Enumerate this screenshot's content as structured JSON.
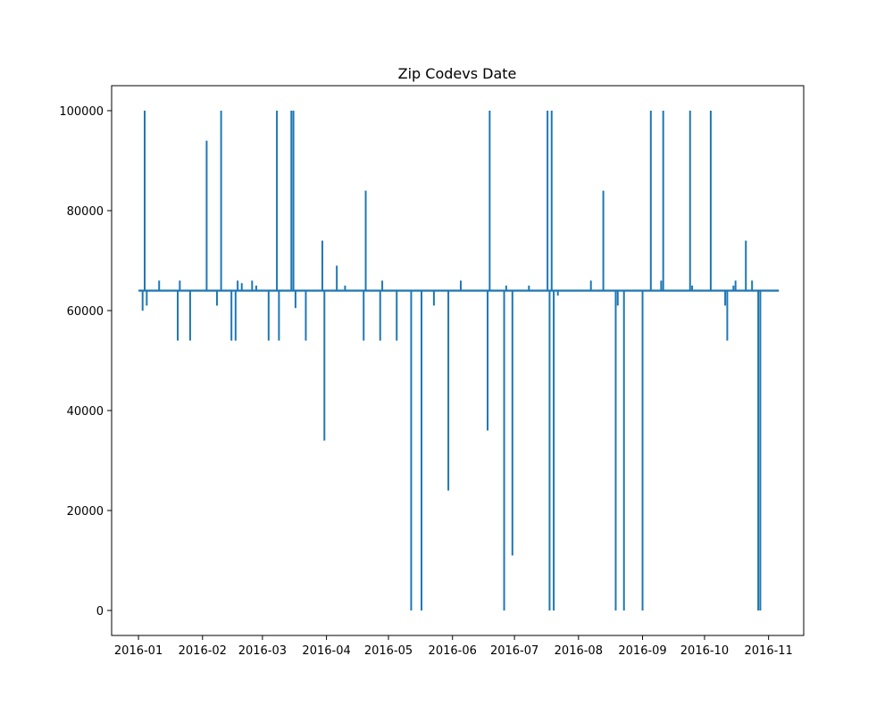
{
  "chart_data": {
    "type": "line",
    "title": "Zip Codevs Date",
    "xlabel": "",
    "ylabel": "",
    "x_axis": {
      "type": "date",
      "range": [
        "2015-12-19",
        "2016-11-18"
      ],
      "ticks": [
        "2016-01-01",
        "2016-02-01",
        "2016-03-01",
        "2016-04-01",
        "2016-05-01",
        "2016-06-01",
        "2016-07-01",
        "2016-08-01",
        "2016-09-01",
        "2016-10-01",
        "2016-11-01"
      ],
      "tick_labels": [
        "2016-01",
        "2016-02",
        "2016-03",
        "2016-04",
        "2016-05",
        "2016-06",
        "2016-07",
        "2016-08",
        "2016-09",
        "2016-10",
        "2016-11"
      ]
    },
    "y_axis": {
      "range": [
        -5000,
        105000
      ],
      "ticks": [
        0,
        20000,
        40000,
        60000,
        80000,
        100000
      ],
      "tick_labels": [
        "0",
        "20000",
        "40000",
        "60000",
        "80000",
        "100000"
      ]
    },
    "grid": false,
    "legend": "none",
    "series": [
      {
        "color": "#1f77b4",
        "baseline": 64000,
        "start": "2016-01-01",
        "end": "2016-11-06",
        "x": [
          "2016-01-03",
          "2016-01-04",
          "2016-01-05",
          "2016-01-11",
          "2016-01-20",
          "2016-01-21",
          "2016-01-26",
          "2016-02-03",
          "2016-02-08",
          "2016-02-10",
          "2016-02-15",
          "2016-02-17",
          "2016-02-18",
          "2016-02-20",
          "2016-02-25",
          "2016-02-27",
          "2016-03-04",
          "2016-03-08",
          "2016-03-09",
          "2016-03-15",
          "2016-03-16",
          "2016-03-17",
          "2016-03-22",
          "2016-03-30",
          "2016-03-31",
          "2016-04-06",
          "2016-04-10",
          "2016-04-19",
          "2016-04-20",
          "2016-04-27",
          "2016-04-28",
          "2016-05-05",
          "2016-05-12",
          "2016-05-17",
          "2016-05-23",
          "2016-05-30",
          "2016-06-05",
          "2016-06-18",
          "2016-06-19",
          "2016-06-26",
          "2016-06-27",
          "2016-06-30",
          "2016-07-08",
          "2016-07-17",
          "2016-07-18",
          "2016-07-19",
          "2016-07-20",
          "2016-07-22",
          "2016-08-07",
          "2016-08-13",
          "2016-08-19",
          "2016-08-20",
          "2016-08-23",
          "2016-09-01",
          "2016-09-05",
          "2016-09-10",
          "2016-09-11",
          "2016-09-24",
          "2016-09-25",
          "2016-10-04",
          "2016-10-11",
          "2016-10-12",
          "2016-10-15",
          "2016-10-16",
          "2016-10-21",
          "2016-10-24",
          "2016-10-27",
          "2016-10-28"
        ],
        "y": [
          60000,
          100000,
          61000,
          66000,
          54000,
          66000,
          54000,
          94000,
          61000,
          100000,
          54000,
          54000,
          66000,
          65500,
          66000,
          65000,
          54000,
          100000,
          54000,
          100000,
          100000,
          60500,
          54000,
          74000,
          34000,
          69000,
          65000,
          54000,
          84000,
          54000,
          66000,
          54000,
          0,
          0,
          61000,
          24000,
          66000,
          36000,
          100000,
          0,
          65000,
          11000,
          65000,
          100000,
          0,
          100000,
          0,
          63000,
          66000,
          84000,
          0,
          61000,
          0,
          0,
          100000,
          66000,
          100000,
          100000,
          65000,
          100000,
          61000,
          54000,
          65000,
          66000,
          74000,
          66000,
          0,
          0
        ]
      }
    ]
  }
}
